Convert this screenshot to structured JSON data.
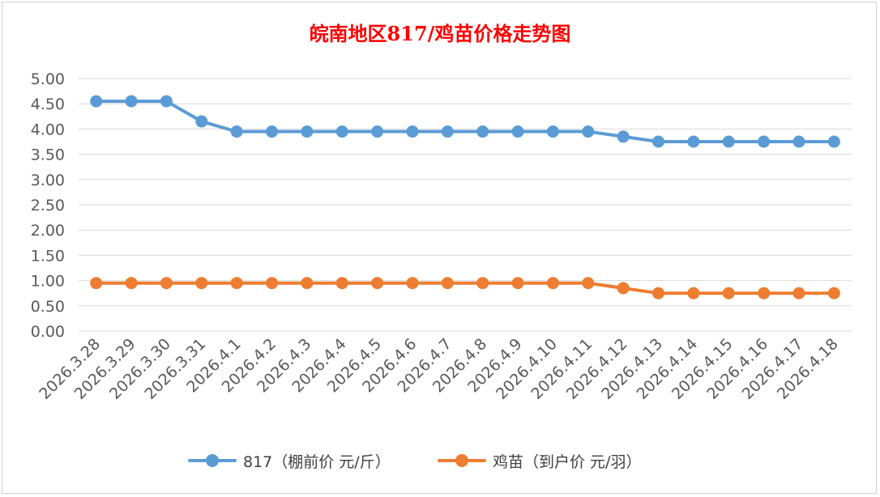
{
  "chart_data": {
    "type": "line",
    "title": "皖南地区817/鸡苗价格走势图",
    "categories": [
      "2026.3.28",
      "2026.3.29",
      "2026.3.30",
      "2026.3.31",
      "2026.4.1",
      "2026.4.2",
      "2026.4.3",
      "2026.4.4",
      "2026.4.5",
      "2026.4.6",
      "2026.4.7",
      "2026.4.8",
      "2026.4.9",
      "2026.4.10",
      "2026.4.11",
      "2026.4.12",
      "2026.4.13",
      "2026.4.14",
      "2026.4.15",
      "2026.4.16",
      "2026.4.17",
      "2026.4.18"
    ],
    "series": [
      {
        "name": "817（棚前价 元/斤）",
        "color": "#5b9bd5",
        "values": [
          4.55,
          4.55,
          4.55,
          4.15,
          3.95,
          3.95,
          3.95,
          3.95,
          3.95,
          3.95,
          3.95,
          3.95,
          3.95,
          3.95,
          3.95,
          3.85,
          3.75,
          3.75,
          3.75,
          3.75,
          3.75,
          3.75
        ]
      },
      {
        "name": "鸡苗（到户价 元/羽）",
        "color": "#ed7d31",
        "values": [
          0.95,
          0.95,
          0.95,
          0.95,
          0.95,
          0.95,
          0.95,
          0.95,
          0.95,
          0.95,
          0.95,
          0.95,
          0.95,
          0.95,
          0.95,
          0.85,
          0.75,
          0.75,
          0.75,
          0.75,
          0.75,
          0.75
        ]
      }
    ],
    "ylim": [
      0,
      5
    ],
    "ytick_step": 0.5,
    "yticks": [
      "0.00",
      "0.50",
      "1.00",
      "1.50",
      "2.00",
      "2.50",
      "3.00",
      "3.50",
      "4.00",
      "4.50",
      "5.00"
    ],
    "xlabel": "",
    "ylabel": "",
    "grid": true,
    "legend_position": "bottom"
  }
}
